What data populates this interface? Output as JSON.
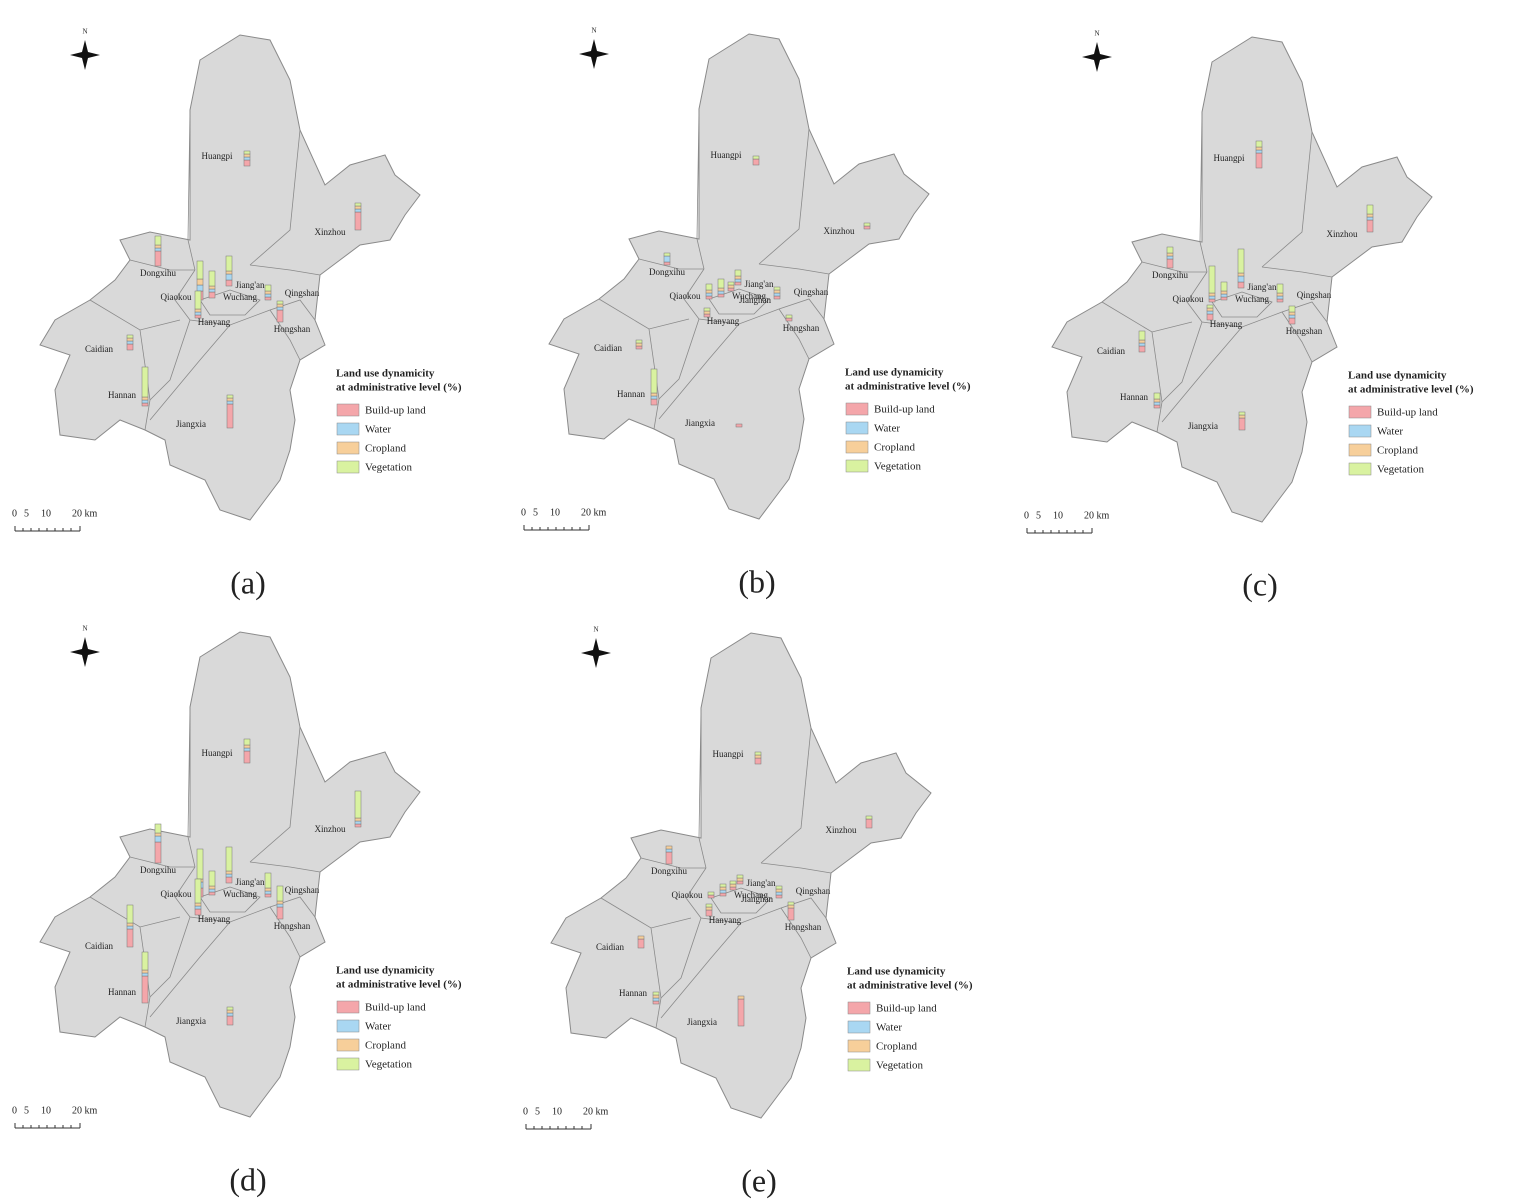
{
  "north": "N",
  "legend_title": [
    "Land use dynamicity",
    "at administrative level (%)"
  ],
  "series": [
    {
      "name": "Build-up land",
      "color": "#f4a6aa"
    },
    {
      "name": "Water",
      "color": "#a9d7f2"
    },
    {
      "name": "Cropland",
      "color": "#f7cf9a"
    },
    {
      "name": "Vegetation",
      "color": "#d9f2a0"
    }
  ],
  "scale": [
    "0",
    "5",
    "10",
    "20 km"
  ],
  "panels": [
    {
      "label": "(a)",
      "districts": [
        "Huangpi",
        "Xinzhou",
        "Dongxihu",
        "Jiang'an",
        "Qiaokou",
        "Wuchang",
        "Qingshan",
        "Hanyang",
        "Hongshan",
        "Caidian",
        "Hannan",
        "Jiangxia"
      ],
      "values": [
        [
          2,
          6,
          5,
          2,
          3,
          2,
          1,
          1,
          4,
          2,
          1,
          8
        ],
        [
          1,
          1,
          1,
          2,
          2,
          1,
          1,
          1,
          1,
          1,
          1,
          1
        ],
        [
          1,
          1,
          1,
          1,
          2,
          1,
          1,
          1,
          1,
          1,
          1,
          1
        ],
        [
          1,
          1,
          3,
          5,
          6,
          5,
          2,
          6,
          1,
          1,
          10,
          1
        ]
      ]
    },
    {
      "label": "(b)",
      "districts": [
        "Huangpi",
        "Xinzhou",
        "Dongxihu",
        "Jiang'an",
        "Qiaokou",
        "Wuchang",
        "Qingshan",
        "Hanyang",
        "Hongshan",
        "Caidian",
        "Hannan",
        "Jiangxia",
        "Jianghan"
      ],
      "values": [
        [
          2,
          1,
          1,
          1,
          1,
          1,
          1,
          1,
          1,
          1,
          2,
          1,
          1
        ],
        [
          0,
          0,
          2,
          1,
          1,
          1,
          1,
          0,
          0,
          0,
          1,
          0,
          0
        ],
        [
          0,
          0,
          0,
          1,
          1,
          1,
          1,
          1,
          0,
          1,
          1,
          0,
          1
        ],
        [
          1,
          1,
          1,
          2,
          2,
          3,
          1,
          1,
          1,
          1,
          8,
          0,
          1
        ]
      ]
    },
    {
      "label": "(c)",
      "districts": [
        "Huangpi",
        "Xinzhou",
        "Dongxihu",
        "Jiang'an",
        "Qiaokou",
        "Wuchang",
        "Qingshan",
        "Hanyang",
        "Hongshan",
        "Caidian",
        "Hannan",
        "Jiangxia"
      ],
      "values": [
        [
          5,
          4,
          3,
          2,
          1,
          1,
          1,
          2,
          2,
          2,
          1,
          4
        ],
        [
          1,
          1,
          1,
          2,
          1,
          1,
          1,
          1,
          1,
          1,
          1,
          0
        ],
        [
          1,
          1,
          1,
          1,
          1,
          1,
          1,
          1,
          1,
          1,
          1,
          1
        ],
        [
          2,
          3,
          2,
          8,
          9,
          3,
          3,
          1,
          2,
          3,
          2,
          1
        ]
      ]
    },
    {
      "label": "(d)",
      "districts": [
        "Huangpi",
        "Xinzhou",
        "Dongxihu",
        "Jiang'an",
        "Qiaokou",
        "Wuchang",
        "Qingshan",
        "Hanyang",
        "Hongshan",
        "Caidian",
        "Hannan",
        "Jiangxia"
      ],
      "values": [
        [
          4,
          1,
          7,
          2,
          3,
          1,
          1,
          2,
          4,
          6,
          9,
          3
        ],
        [
          1,
          1,
          2,
          1,
          2,
          1,
          1,
          1,
          1,
          1,
          1,
          1
        ],
        [
          1,
          1,
          1,
          1,
          1,
          1,
          1,
          1,
          1,
          1,
          1,
          1
        ],
        [
          2,
          9,
          3,
          8,
          10,
          5,
          5,
          8,
          5,
          6,
          6,
          1
        ]
      ]
    },
    {
      "label": "(e)",
      "districts": [
        "Huangpi",
        "Xinzhou",
        "Dongxihu",
        "Jiang'an",
        "Qiaokou",
        "Wuchang",
        "Qingshan",
        "Hanyang",
        "Hongshan",
        "Caidian",
        "Hannan",
        "Jiangxia",
        "Jianghan"
      ],
      "values": [
        [
          2,
          3,
          4,
          1,
          1,
          1,
          1,
          2,
          4,
          3,
          1,
          9,
          1
        ],
        [
          0,
          0,
          1,
          0,
          0,
          1,
          1,
          0,
          0,
          0,
          1,
          0,
          0
        ],
        [
          1,
          0,
          1,
          1,
          0,
          1,
          1,
          1,
          1,
          1,
          1,
          1,
          1
        ],
        [
          1,
          1,
          0,
          1,
          1,
          1,
          1,
          1,
          1,
          0,
          1,
          0,
          1
        ]
      ]
    }
  ]
}
